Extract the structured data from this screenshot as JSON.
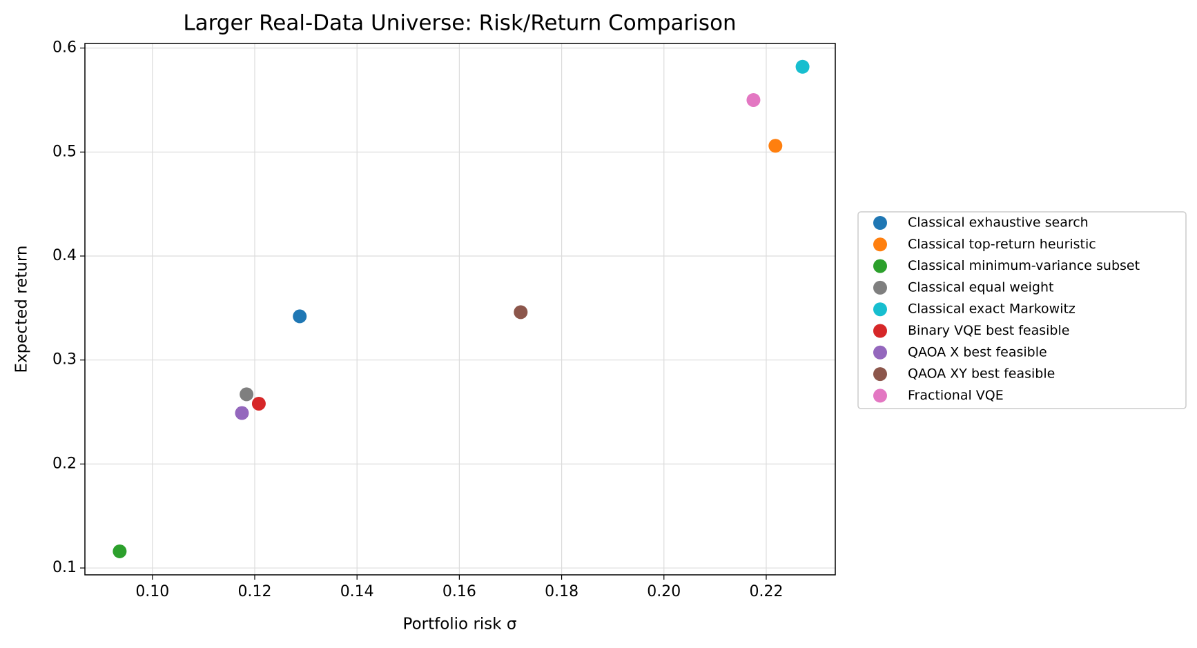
{
  "chart_data": {
    "type": "scatter",
    "title": "Larger Real-Data Universe: Risk/Return Comparison",
    "x_label": "Portfolio risk σ",
    "y_label": "Expected return",
    "xlim": [
      0.0868,
      0.2335
    ],
    "ylim": [
      0.0934,
      0.6044
    ],
    "xticks": [
      {
        "value": 0.1,
        "label": "0.10"
      },
      0.12,
      0.14,
      0.16,
      0.18,
      {
        "value": 0.2,
        "label": "0.20"
      },
      0.22
    ],
    "yticks": [
      0.1,
      0.2,
      0.3,
      0.4,
      0.5,
      0.6
    ],
    "grid": true,
    "legend": "outside-right",
    "series": [
      {
        "name": "Classical exhaustive search",
        "color": "#1f77b4",
        "x": [
          0.1288
        ],
        "values": [
          0.342
        ]
      },
      {
        "name": "Classical top-return heuristic",
        "color": "#ff7f0e",
        "x": [
          0.2218
        ],
        "values": [
          0.506
        ]
      },
      {
        "name": "Classical minimum-variance subset",
        "color": "#2ca02c",
        "x": [
          0.0936
        ],
        "values": [
          0.116
        ]
      },
      {
        "name": "Classical equal weight",
        "color": "#7f7f7f",
        "x": [
          0.1184
        ],
        "values": [
          0.267
        ]
      },
      {
        "name": "Classical exact Markowitz",
        "color": "#17becf",
        "x": [
          0.2271
        ],
        "values": [
          0.582
        ]
      },
      {
        "name": "Binary VQE best feasible",
        "color": "#d62728",
        "x": [
          0.1208
        ],
        "values": [
          0.258
        ]
      },
      {
        "name": "QAOA X best feasible",
        "color": "#9467bd",
        "x": [
          0.1175
        ],
        "values": [
          0.249
        ]
      },
      {
        "name": "QAOA XY best feasible",
        "color": "#8c564b",
        "x": [
          0.172
        ],
        "values": [
          0.346
        ]
      },
      {
        "name": "Fractional VQE",
        "color": "#e377c2",
        "x": [
          0.2175
        ],
        "values": [
          0.55
        ]
      }
    ]
  }
}
